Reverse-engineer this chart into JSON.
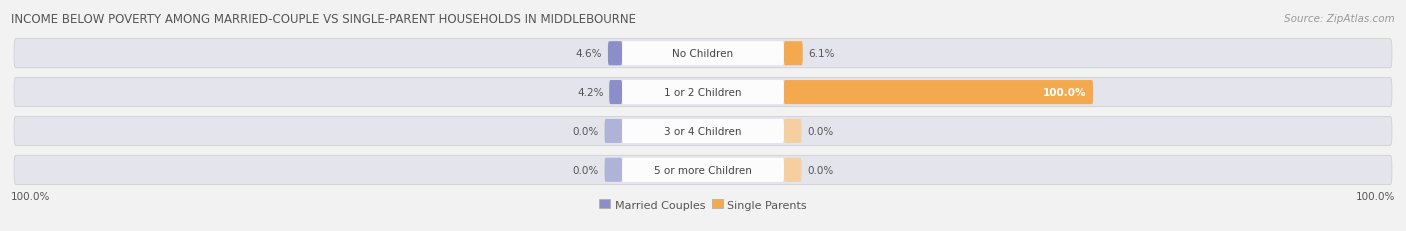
{
  "title": "INCOME BELOW POVERTY AMONG MARRIED-COUPLE VS SINGLE-PARENT HOUSEHOLDS IN MIDDLEBOURNE",
  "source": "Source: ZipAtlas.com",
  "categories": [
    "No Children",
    "1 or 2 Children",
    "3 or 4 Children",
    "5 or more Children"
  ],
  "married_values": [
    4.6,
    4.2,
    0.0,
    0.0
  ],
  "single_values": [
    6.1,
    100.0,
    0.0,
    0.0
  ],
  "married_color": "#8b8ec8",
  "single_color": "#f5a94e",
  "married_color_light": "#b0b3d8",
  "single_color_light": "#f5cfa0",
  "married_color_legend": "#8b8ec8",
  "single_color_legend": "#f5a94e",
  "bg_color": "#f2f2f2",
  "row_bg_color": "#e4e4ec",
  "label_bg_color": "#ffffff",
  "max_value": 100.0,
  "title_fontsize": 8.5,
  "source_fontsize": 7.5,
  "value_fontsize": 7.5,
  "cat_fontsize": 7.5,
  "legend_fontsize": 8,
  "bottom_labels": [
    "100.0%",
    "100.0%"
  ],
  "figsize": [
    14.06,
    2.32
  ]
}
